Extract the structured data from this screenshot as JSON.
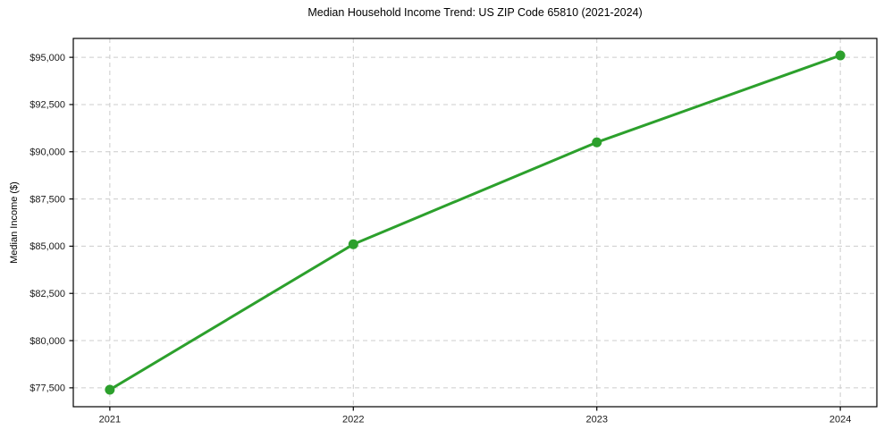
{
  "chart_data": {
    "type": "line",
    "title": "Median Household Income Trend: US ZIP Code 65810 (2021-2024)",
    "xlabel": "",
    "ylabel": "Median Income ($)",
    "x": [
      2021,
      2022,
      2023,
      2024
    ],
    "x_tick_labels": [
      "2021",
      "2022",
      "2023",
      "2024"
    ],
    "values": [
      77400,
      85100,
      90500,
      95100
    ],
    "y_ticks": [
      77500,
      80000,
      82500,
      85000,
      87500,
      90000,
      92500,
      95000
    ],
    "y_tick_labels": [
      "$77,500",
      "$80,000",
      "$82,500",
      "$85,000",
      "$87,500",
      "$90,000",
      "$92,500",
      "$95,000"
    ],
    "ylim": [
      76500,
      96000
    ],
    "xlim": [
      2020.85,
      2024.15
    ],
    "grid": true,
    "grid_style": "dashed",
    "legend": false,
    "marker": "circle",
    "colors": {
      "line": "#2ca02c",
      "marker": "#2ca02c",
      "grid": "#cccccc",
      "spine": "#000000",
      "text": "#1a1a1a",
      "background": "#ffffff"
    }
  }
}
